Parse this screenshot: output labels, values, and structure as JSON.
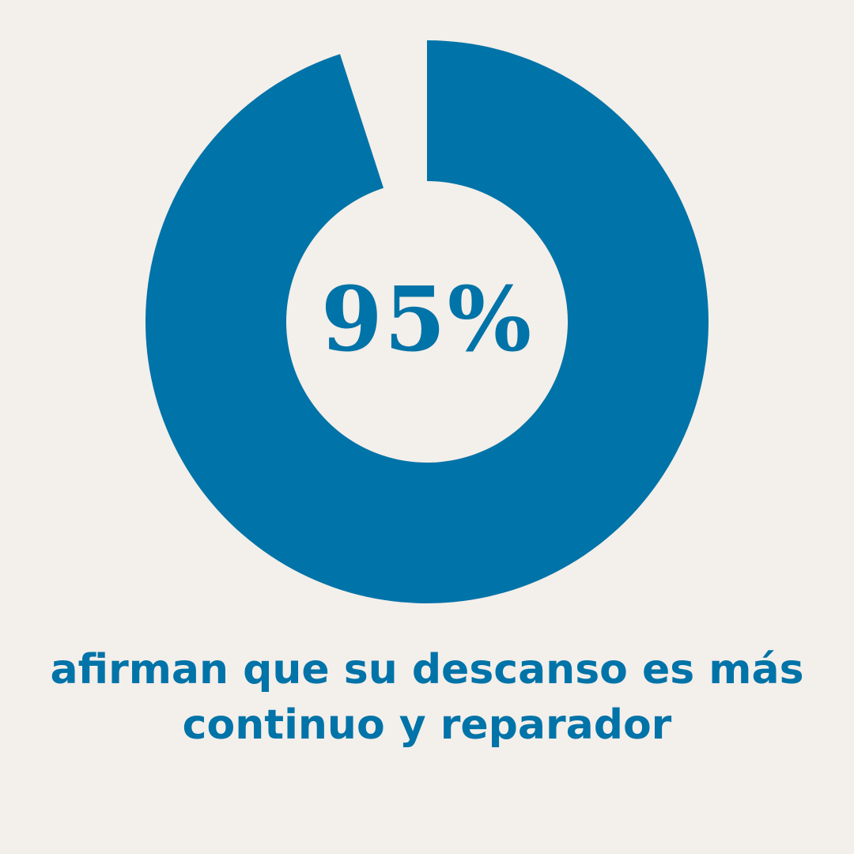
{
  "chart_data": {
    "type": "pie",
    "variant": "donut",
    "values": [
      95,
      5
    ],
    "center_label": "95%",
    "caption": {
      "line1": "afirman que su descanso es más",
      "line2": "continuo y reparador"
    }
  },
  "colors": {
    "background": "#f3efea",
    "fill": "#0073a8"
  }
}
